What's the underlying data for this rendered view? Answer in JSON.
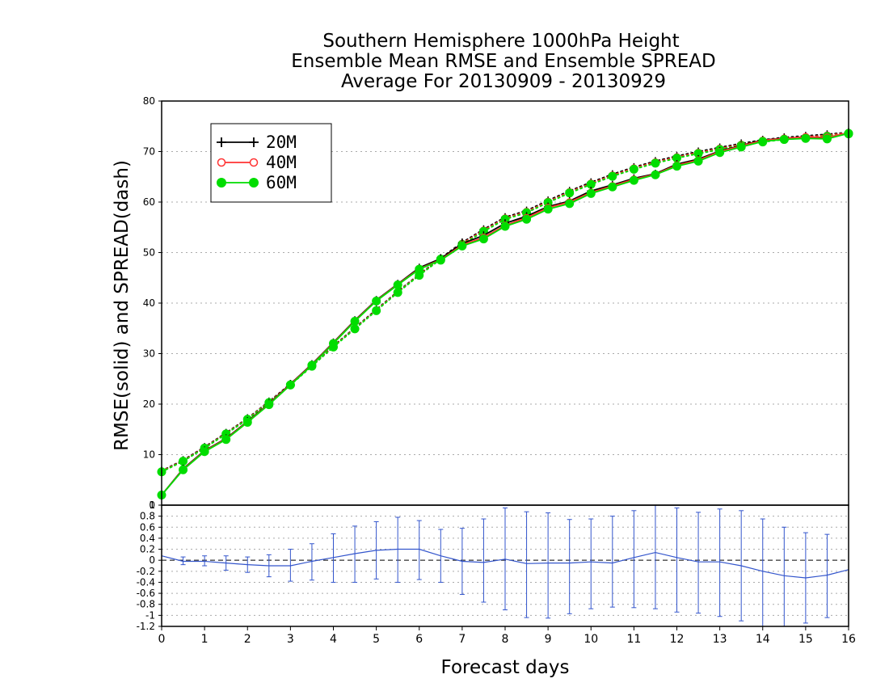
{
  "chart_data": [
    {
      "type": "line",
      "title": [
        "Southern Hemisphere 1000hPa Height",
        "Ensemble Mean RMSE and Ensemble SPREAD",
        "Average For 20130909 - 20130929"
      ],
      "ylabel": "RMSE(solid)  and  SPREAD(dash)",
      "xlim": [
        0,
        16
      ],
      "ylim": [
        0,
        80
      ],
      "y_ticks": [
        "10",
        "20",
        "30",
        "40",
        "50",
        "60",
        "70",
        "80"
      ],
      "grid": true,
      "legend": {
        "position": "top-left",
        "entries": [
          {
            "label": "20M",
            "color": "#000000",
            "marker": "plus"
          },
          {
            "label": "40M",
            "color": "#ff3333",
            "marker": "open-circle"
          },
          {
            "label": "60M",
            "color": "#00dd00",
            "marker": "filled-circle"
          }
        ]
      },
      "x": [
        0,
        0.5,
        1,
        1.5,
        2,
        2.5,
        3,
        3.5,
        4,
        4.5,
        5,
        5.5,
        6,
        6.5,
        7,
        7.5,
        8,
        8.5,
        9,
        9.5,
        10,
        10.5,
        11,
        11.5,
        12,
        12.5,
        13,
        13.5,
        14,
        14.5,
        15,
        15.5,
        16
      ],
      "series": [
        {
          "name": "20M",
          "kind": "rmse",
          "color": "#000000",
          "values": [
            2.0,
            7.2,
            10.8,
            13.2,
            16.6,
            20.1,
            24.0,
            27.9,
            32.2,
            36.6,
            40.6,
            43.8,
            47.0,
            48.8,
            51.8,
            53.4,
            55.8,
            57.2,
            59.1,
            60.2,
            62.2,
            63.4,
            64.7,
            65.6,
            67.5,
            68.5,
            70.1,
            71.2,
            72.3,
            72.6,
            72.8,
            72.7,
            73.7
          ]
        },
        {
          "name": "40M",
          "kind": "rmse",
          "color": "#ff3333",
          "values": [
            2.0,
            7.1,
            10.7,
            13.1,
            16.5,
            20.0,
            23.9,
            27.8,
            32.1,
            36.5,
            40.5,
            43.7,
            46.8,
            48.6,
            51.5,
            53.0,
            55.4,
            56.9,
            58.9,
            60.0,
            61.9,
            63.2,
            64.5,
            65.5,
            67.3,
            68.3,
            70.0,
            71.1,
            72.2,
            72.6,
            72.9,
            72.8,
            73.7
          ]
        },
        {
          "name": "60M",
          "kind": "rmse",
          "color": "#00dd00",
          "values": [
            2.0,
            7.0,
            10.6,
            13.0,
            16.4,
            19.9,
            23.8,
            27.7,
            32.0,
            36.4,
            40.4,
            43.6,
            46.7,
            48.5,
            51.3,
            52.7,
            55.2,
            56.6,
            58.6,
            59.7,
            61.7,
            63.0,
            64.3,
            65.4,
            67.1,
            68.1,
            69.8,
            70.9,
            72.0,
            72.4,
            72.6,
            72.5,
            73.6
          ]
        },
        {
          "name": "20M",
          "kind": "spread",
          "color": "#000000",
          "values": [
            6.8,
            8.9,
            11.5,
            14.3,
            17.2,
            20.5,
            24.0,
            27.7,
            31.5,
            35.1,
            38.7,
            42.3,
            45.7,
            48.9,
            52.0,
            54.6,
            57.0,
            58.3,
            60.3,
            62.2,
            63.9,
            65.5,
            66.9,
            68.1,
            69.1,
            70.0,
            70.8,
            71.6,
            72.3,
            72.8,
            73.1,
            73.4,
            73.8
          ]
        },
        {
          "name": "40M",
          "kind": "spread",
          "color": "#ff3333",
          "values": [
            6.7,
            8.8,
            11.4,
            14.2,
            17.1,
            20.4,
            23.9,
            27.6,
            31.4,
            35.0,
            38.6,
            42.2,
            45.6,
            48.8,
            51.8,
            54.4,
            56.8,
            58.1,
            60.1,
            62.0,
            63.7,
            65.3,
            66.7,
            67.9,
            68.9,
            69.8,
            70.6,
            71.4,
            72.1,
            72.6,
            72.9,
            73.2,
            73.7
          ]
        },
        {
          "name": "60M",
          "kind": "spread",
          "color": "#00dd00",
          "values": [
            6.6,
            8.7,
            11.3,
            14.1,
            17.0,
            20.3,
            23.8,
            27.5,
            31.3,
            34.9,
            38.5,
            42.1,
            45.5,
            48.7,
            51.6,
            54.2,
            56.6,
            57.9,
            59.9,
            61.8,
            63.5,
            65.1,
            66.5,
            67.7,
            68.7,
            69.6,
            70.4,
            71.2,
            71.9,
            72.4,
            72.7,
            73.0,
            73.5
          ]
        }
      ]
    },
    {
      "type": "line",
      "xlabel": "Forecast days",
      "xlim": [
        0,
        16
      ],
      "ylim": [
        -1.2,
        1.0
      ],
      "x_ticks": [
        "0",
        "1",
        "2",
        "3",
        "4",
        "5",
        "6",
        "7",
        "8",
        "9",
        "10",
        "11",
        "12",
        "13",
        "14",
        "15",
        "16"
      ],
      "y_ticks": [
        "-1.2",
        "-1",
        "-0.8",
        "-0.6",
        "-0.4",
        "-0.2",
        "0",
        "0.2",
        "0.4",
        "0.6",
        "0.8",
        "1"
      ],
      "y_top_tick": "0",
      "grid": true,
      "color": "#3355cc",
      "zero_line": true,
      "x": [
        0,
        0.5,
        1,
        1.5,
        2,
        2.5,
        3,
        3.5,
        4,
        4.5,
        5,
        5.5,
        6,
        6.5,
        7,
        7.5,
        8,
        8.5,
        9,
        9.5,
        10,
        10.5,
        11,
        11.5,
        12,
        12.5,
        13,
        13.5,
        14,
        14.5,
        15,
        15.5,
        16
      ],
      "values": [
        0.08,
        -0.02,
        -0.02,
        -0.05,
        -0.08,
        -0.1,
        -0.1,
        -0.02,
        0.05,
        0.12,
        0.18,
        0.2,
        0.2,
        0.08,
        -0.02,
        -0.04,
        0.02,
        -0.06,
        -0.05,
        -0.05,
        -0.03,
        -0.05,
        0.05,
        0.14,
        0.05,
        -0.03,
        -0.03,
        -0.1,
        -0.2,
        -0.28,
        -0.32,
        -0.27,
        -0.17
      ],
      "error_bars": [
        {
          "x": 0.5,
          "low": -0.08,
          "high": 0.06
        },
        {
          "x": 1,
          "low": -0.1,
          "high": 0.08
        },
        {
          "x": 1.5,
          "low": -0.18,
          "high": 0.08
        },
        {
          "x": 2,
          "low": -0.22,
          "high": 0.06
        },
        {
          "x": 2.5,
          "low": -0.3,
          "high": 0.1
        },
        {
          "x": 3,
          "low": -0.38,
          "high": 0.2
        },
        {
          "x": 3.5,
          "low": -0.36,
          "high": 0.3
        },
        {
          "x": 4,
          "low": -0.4,
          "high": 0.48
        },
        {
          "x": 4.5,
          "low": -0.4,
          "high": 0.62
        },
        {
          "x": 5,
          "low": -0.34,
          "high": 0.7
        },
        {
          "x": 5.5,
          "low": -0.4,
          "high": 0.78
        },
        {
          "x": 6,
          "low": -0.35,
          "high": 0.72
        },
        {
          "x": 6.5,
          "low": -0.4,
          "high": 0.56
        },
        {
          "x": 7,
          "low": -0.62,
          "high": 0.58
        },
        {
          "x": 7.5,
          "low": -0.76,
          "high": 0.75
        },
        {
          "x": 8,
          "low": -0.9,
          "high": 0.95
        },
        {
          "x": 8.5,
          "low": -1.04,
          "high": 0.88
        },
        {
          "x": 9,
          "low": -1.05,
          "high": 0.86
        },
        {
          "x": 9.5,
          "low": -0.97,
          "high": 0.74
        },
        {
          "x": 10,
          "low": -0.88,
          "high": 0.75
        },
        {
          "x": 10.5,
          "low": -0.85,
          "high": 0.8
        },
        {
          "x": 11,
          "low": -0.86,
          "high": 0.9
        },
        {
          "x": 11.5,
          "low": -0.88,
          "high": 1.05
        },
        {
          "x": 12,
          "low": -0.94,
          "high": 0.95
        },
        {
          "x": 12.5,
          "low": -0.96,
          "high": 0.87
        },
        {
          "x": 13,
          "low": -1.02,
          "high": 0.93
        },
        {
          "x": 13.5,
          "low": -1.1,
          "high": 0.9
        },
        {
          "x": 14,
          "low": -1.22,
          "high": 0.75
        },
        {
          "x": 14.5,
          "low": -1.25,
          "high": 0.6
        },
        {
          "x": 15,
          "low": -1.14,
          "high": 0.5
        },
        {
          "x": 15.5,
          "low": -1.04,
          "high": 0.47
        }
      ]
    }
  ]
}
